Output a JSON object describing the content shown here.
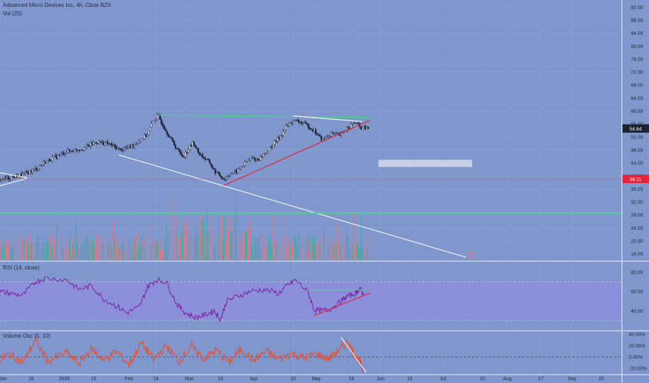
{
  "header": {
    "title": "Advanced Micro Devices Inc, 4h, Cboe BZX",
    "vol_label": "Vol (20)",
    "rsi_label": "RSI (14, close)",
    "osc_label": "Volume Osc (5, 10)"
  },
  "colors": {
    "background": "#7f97cc",
    "rsi_band": "#8b8fd9",
    "up_candle": "#e8edf7",
    "down_candle": "#1b2033",
    "green_line": "#3ddc84",
    "red_line": "#e3243b",
    "white_line": "#f2f4fa",
    "rsi_line": "#7b1fa2",
    "osc_line": "#f04a23",
    "vol_up": "#3ea7a0",
    "vol_down": "#e4747b",
    "price_tag": "#1b2033",
    "level_tag": "#e3243b"
  },
  "price_axis": {
    "ticks": [
      "92.00",
      "88.00",
      "84.00",
      "80.00",
      "76.00",
      "72.00",
      "68.00",
      "64.00",
      "60.00",
      "56.00",
      "52.00",
      "48.00",
      "44.00",
      "40.00",
      "36.00",
      "32.00",
      "28.00",
      "24.00",
      "20.00",
      "16.00"
    ],
    "current_price_label": "54.64",
    "level_label": "39.11"
  },
  "rsi_axis": {
    "ticks": [
      "80.00",
      "60.00",
      "40.00"
    ]
  },
  "osc_axis": {
    "ticks": [
      "40.00%",
      "20.00%",
      "0.00%",
      "-20.00%"
    ]
  },
  "time_axis": {
    "labels": [
      "Dec",
      "16",
      "2020",
      "15",
      "Feb",
      "14",
      "Mar",
      "16",
      "Apr",
      "20",
      "May",
      "18",
      "Jun",
      "15",
      "Jul",
      "20",
      "Aug",
      "17",
      "Sep",
      "15"
    ]
  },
  "chart_data": [
    {
      "type": "candlestick",
      "title": "Advanced Micro Devices Inc, 4h, Cboe BZX",
      "x_range": [
        "2019-12-01",
        "2020-09-25"
      ],
      "ylim": [
        14,
        94
      ],
      "last_price": 54.64,
      "horizontal_level": 39.11,
      "close_path": {
        "x": [
          "2019-12-01",
          "2019-12-06",
          "2019-12-12",
          "2019-12-18",
          "2019-12-23",
          "2020-01-02",
          "2020-01-10",
          "2020-01-16",
          "2020-01-22",
          "2020-01-28",
          "2020-02-03",
          "2020-02-10",
          "2020-02-13",
          "2020-02-15",
          "2020-02-18",
          "2020-02-21",
          "2020-02-25",
          "2020-02-27",
          "2020-03-03",
          "2020-03-05",
          "2020-03-09",
          "2020-03-11",
          "2020-03-13",
          "2020-03-16",
          "2020-03-18",
          "2020-03-20",
          "2020-03-24",
          "2020-03-27",
          "2020-03-31",
          "2020-04-03",
          "2020-04-08",
          "2020-04-14",
          "2020-04-17",
          "2020-04-20",
          "2020-04-24",
          "2020-04-28",
          "2020-04-30",
          "2020-05-04",
          "2020-05-08",
          "2020-05-13",
          "2020-05-15",
          "2020-05-20",
          "2020-05-22",
          "2020-05-26"
        ],
        "y": [
          39.0,
          39.5,
          40.5,
          42.0,
          44.5,
          47.5,
          48.5,
          50.5,
          50.0,
          48.0,
          49.5,
          53.0,
          57.5,
          58.5,
          55.0,
          51.5,
          47.5,
          46.0,
          50.5,
          47.5,
          45.0,
          44.0,
          41.5,
          40.0,
          39.0,
          40.5,
          41.5,
          43.5,
          45.5,
          45.0,
          48.0,
          52.5,
          55.5,
          57.0,
          56.5,
          55.0,
          54.0,
          51.0,
          53.0,
          52.5,
          54.5,
          56.5,
          55.0,
          54.6
        ]
      },
      "annotations": [
        {
          "kind": "green-resistance",
          "from": [
            "2020-02-15",
            58.8
          ],
          "to": [
            "2020-05-27",
            58.0
          ]
        },
        {
          "kind": "white-triangle-top",
          "from": [
            "2020-04-20",
            58.5
          ],
          "to": [
            "2020-05-23",
            56.8
          ]
        },
        {
          "kind": "red-support",
          "from": [
            "2020-03-17",
            36.9
          ],
          "to": [
            "2020-05-27",
            57.2
          ]
        },
        {
          "kind": "white-trendline",
          "from": [
            "2020-01-27",
            46.5
          ],
          "to": [
            "2020-07-12",
            15.0
          ]
        },
        {
          "kind": "white-short",
          "from": [
            "2019-12-01",
            41.0
          ],
          "to": [
            "2019-12-14",
            39.5
          ]
        },
        {
          "kind": "white-short",
          "from": [
            "2019-12-01",
            37.0
          ],
          "to": [
            "2019-12-14",
            39.3
          ]
        },
        {
          "kind": "green-level",
          "y": 28.6
        },
        {
          "kind": "target-box",
          "from": [
            "2020-05-31",
            45.0
          ],
          "to": [
            "2020-07-15",
            42.8
          ]
        }
      ]
    },
    {
      "type": "bar",
      "title": "Vol (20)",
      "note": "relative volume bars at the bottom of the price pane",
      "x": [
        "2019-12-03",
        "2019-12-10",
        "2019-12-17",
        "2019-12-27",
        "2020-01-07",
        "2020-01-14",
        "2020-01-21",
        "2020-01-28",
        "2020-02-04",
        "2020-02-11",
        "2020-02-14",
        "2020-02-18",
        "2020-02-25",
        "2020-02-28",
        "2020-03-03",
        "2020-03-09",
        "2020-03-12",
        "2020-03-16",
        "2020-03-18",
        "2020-03-20",
        "2020-03-24",
        "2020-03-26",
        "2020-03-31",
        "2020-04-07",
        "2020-04-14",
        "2020-04-17",
        "2020-04-21",
        "2020-04-28",
        "2020-05-01",
        "2020-05-05",
        "2020-05-08",
        "2020-05-13",
        "2020-05-15",
        "2020-05-19",
        "2020-05-22"
      ],
      "values": [
        0.22,
        0.28,
        0.35,
        0.2,
        0.3,
        0.4,
        0.33,
        0.45,
        0.3,
        0.5,
        0.55,
        0.42,
        0.52,
        0.6,
        0.78,
        0.9,
        0.7,
        1.0,
        0.72,
        0.58,
        0.62,
        0.5,
        0.45,
        0.4,
        0.5,
        0.48,
        0.9,
        0.68,
        0.58,
        0.5,
        0.35,
        0.42,
        0.36,
        0.48,
        0.32
      ],
      "direction": [
        "up",
        "down",
        "up",
        "up",
        "down",
        "up",
        "down",
        "down",
        "up",
        "up",
        "down",
        "down",
        "up",
        "down",
        "up",
        "down",
        "down",
        "up",
        "down",
        "up",
        "up",
        "down",
        "up",
        "down",
        "up",
        "down",
        "down",
        "up",
        "down",
        "up",
        "down",
        "up",
        "down",
        "up",
        "down"
      ]
    },
    {
      "type": "line",
      "title": "RSI (14, close)",
      "ylim": [
        20,
        90
      ],
      "bands": [
        30,
        70
      ],
      "x": [
        "2019-12-01",
        "2019-12-06",
        "2019-12-12",
        "2019-12-18",
        "2019-12-23",
        "2020-01-02",
        "2020-01-08",
        "2020-01-14",
        "2020-01-20",
        "2020-01-26",
        "2020-01-31",
        "2020-02-06",
        "2020-02-10",
        "2020-02-14",
        "2020-02-19",
        "2020-02-24",
        "2020-02-28",
        "2020-03-04",
        "2020-03-09",
        "2020-03-13",
        "2020-03-16",
        "2020-03-19",
        "2020-03-24",
        "2020-03-30",
        "2020-04-06",
        "2020-04-13",
        "2020-04-17",
        "2020-04-21",
        "2020-04-27",
        "2020-04-30",
        "2020-05-04",
        "2020-05-08",
        "2020-05-13",
        "2020-05-16",
        "2020-05-20",
        "2020-05-22",
        "2020-05-24"
      ],
      "values": [
        60,
        58,
        56,
        70,
        74,
        72,
        62,
        66,
        52,
        45,
        38,
        44,
        65,
        72,
        70,
        47,
        38,
        33,
        36,
        40,
        31,
        50,
        55,
        60,
        62,
        58,
        66,
        72,
        60,
        41,
        40,
        42,
        50,
        55,
        58,
        63,
        56
      ],
      "annotations": [
        {
          "kind": "green-resistance",
          "from": [
            "2020-04-27",
            62.0
          ],
          "to": [
            "2020-05-26",
            62.0
          ]
        },
        {
          "kind": "red-support",
          "from": [
            "2020-04-30",
            35.0
          ],
          "to": [
            "2020-05-27",
            58.5
          ]
        }
      ]
    },
    {
      "type": "line",
      "title": "Volume Osc (5, 10)",
      "ylim": [
        -30,
        45
      ],
      "x": [
        "2019-12-01",
        "2019-12-06",
        "2019-12-12",
        "2019-12-18",
        "2019-12-24",
        "2020-01-02",
        "2020-01-08",
        "2020-01-14",
        "2020-01-20",
        "2020-01-26",
        "2020-02-01",
        "2020-02-07",
        "2020-02-13",
        "2020-02-19",
        "2020-02-25",
        "2020-03-02",
        "2020-03-08",
        "2020-03-14",
        "2020-03-20",
        "2020-03-26",
        "2020-04-01",
        "2020-04-07",
        "2020-04-13",
        "2020-04-19",
        "2020-04-25",
        "2020-05-01",
        "2020-05-07",
        "2020-05-12",
        "2020-05-16",
        "2020-05-19",
        "2020-05-22",
        "2020-05-24"
      ],
      "values": [
        -5,
        5,
        -10,
        30,
        -8,
        8,
        -12,
        15,
        -6,
        10,
        -14,
        25,
        -5,
        20,
        -8,
        18,
        -3,
        12,
        -10,
        14,
        -6,
        10,
        -4,
        6,
        -2,
        5,
        -3,
        12,
        25,
        8,
        -10,
        -25
      ],
      "annotations": [
        {
          "kind": "white-trendline",
          "from": [
            "2020-05-13",
            35.0
          ],
          "to": [
            "2020-05-25",
            -27.0
          ]
        }
      ]
    }
  ]
}
